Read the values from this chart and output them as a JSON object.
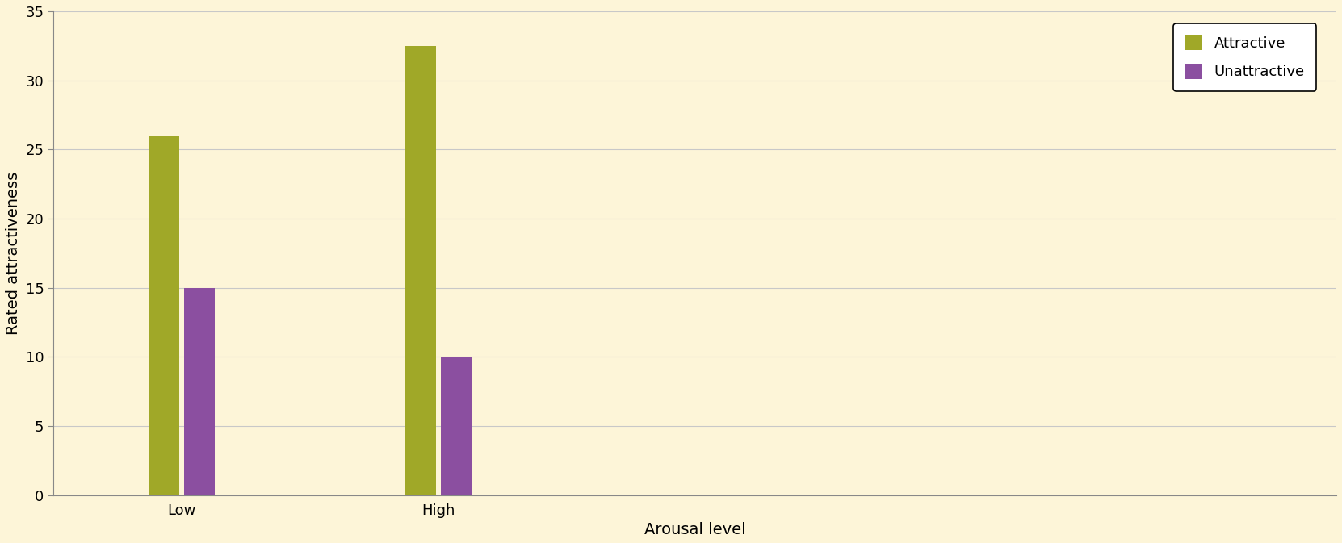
{
  "categories": [
    "Low",
    "High"
  ],
  "attractive_values": [
    26,
    32.5
  ],
  "unattractive_values": [
    15,
    10
  ],
  "attractive_color": "#a0a828",
  "unattractive_color": "#8b4fa0",
  "background_color": "#fdf5d8",
  "ylabel": "Rated attractiveness",
  "xlabel": "Arousal level",
  "ylim": [
    0,
    35
  ],
  "yticks": [
    0,
    5,
    10,
    15,
    20,
    25,
    30,
    35
  ],
  "legend_labels": [
    "Attractive",
    "Unattractive"
  ],
  "bar_width": 0.12,
  "group_centers": [
    1.0,
    2.0
  ],
  "xlim": [
    0.5,
    5.5
  ],
  "axis_fontsize": 14,
  "tick_fontsize": 13,
  "legend_fontsize": 13,
  "grid_color": "#c8c8c8",
  "spine_color": "#888888"
}
